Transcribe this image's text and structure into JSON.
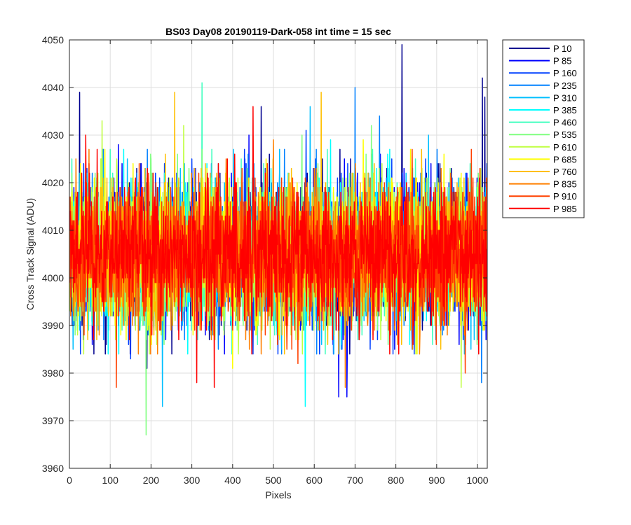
{
  "chart_data": {
    "type": "line",
    "title": "BS03 Day08 20190119-Dark-058 int time = 15 sec",
    "xlabel": "Pixels",
    "ylabel": "Cross Track Signal (ADU)",
    "xlim": [
      0,
      1024
    ],
    "ylim": [
      3960,
      4050
    ],
    "x_ticks": [
      0,
      100,
      200,
      300,
      400,
      500,
      600,
      700,
      800,
      900,
      1000
    ],
    "y_ticks": [
      3960,
      3970,
      3980,
      3990,
      4000,
      4010,
      4020,
      4030,
      4040,
      4050
    ],
    "grid": true,
    "legend_location": "outside-right-top",
    "x_range": [
      1,
      1024
    ],
    "noise_center": 4005,
    "series": [
      {
        "name": "P 10",
        "color": "#00008f",
        "spikes": [
          [
            25,
            4039
          ],
          [
            190,
            3981
          ],
          [
            470,
            4036
          ],
          [
            815,
            4049
          ],
          [
            1012,
            4042
          ],
          [
            1018,
            4038
          ],
          [
            60,
            3984
          ]
        ]
      },
      {
        "name": "P 85",
        "color": "#0000ff",
        "spikes": [
          [
            120,
            4028
          ],
          [
            660,
            3975
          ],
          [
            680,
            3975
          ],
          [
            440,
            4030
          ],
          [
            955,
            3986
          ]
        ]
      },
      {
        "name": "P 160",
        "color": "#0040ff",
        "spikes": [
          [
            300,
            4025
          ],
          [
            580,
            4031
          ],
          [
            840,
            3985
          ],
          [
            150,
            3983
          ]
        ]
      },
      {
        "name": "P 235",
        "color": "#0080ff",
        "spikes": [
          [
            700,
            4040
          ],
          [
            760,
            4034
          ],
          [
            350,
            3988
          ],
          [
            1010,
            3978
          ]
        ]
      },
      {
        "name": "P 310",
        "color": "#00bfff",
        "spikes": [
          [
            228,
            3973
          ],
          [
            590,
            4036
          ],
          [
            880,
            4030
          ],
          [
            520,
            3985
          ]
        ]
      },
      {
        "name": "P 385",
        "color": "#00ffff",
        "spikes": [
          [
            578,
            3973
          ],
          [
            640,
            4029
          ],
          [
            200,
            3986
          ]
        ]
      },
      {
        "name": "P 460",
        "color": "#40ffbf",
        "spikes": [
          [
            325,
            4041
          ],
          [
            100,
            4027
          ],
          [
            890,
            3986
          ]
        ]
      },
      {
        "name": "P 535",
        "color": "#80ff80",
        "spikes": [
          [
            188,
            3967
          ],
          [
            570,
            4030
          ],
          [
            740,
            4032
          ]
        ]
      },
      {
        "name": "P 610",
        "color": "#bfff40",
        "spikes": [
          [
            80,
            4033
          ],
          [
            280,
            4032
          ],
          [
            960,
            3977
          ]
        ]
      },
      {
        "name": "P 685",
        "color": "#ffff00",
        "spikes": [
          [
            400,
            3981
          ],
          [
            720,
            4029
          ],
          [
            30,
            4021
          ]
        ]
      },
      {
        "name": "P 760",
        "color": "#ffbf00",
        "spikes": [
          [
            258,
            4039
          ],
          [
            617,
            4039
          ],
          [
            950,
            4020
          ]
        ]
      },
      {
        "name": "P 835",
        "color": "#ff8000",
        "spikes": [
          [
            450,
            4030
          ],
          [
            676,
            3977
          ],
          [
            500,
            4029
          ]
        ]
      },
      {
        "name": "P 910",
        "color": "#ff4000",
        "spikes": [
          [
            115,
            3977
          ],
          [
            560,
            3982
          ],
          [
            970,
            3980
          ]
        ]
      },
      {
        "name": "P 985",
        "color": "#ff0000",
        "spikes": [
          [
            450,
            4036
          ],
          [
            355,
            3977
          ],
          [
            312,
            3978
          ],
          [
            40,
            4030
          ]
        ]
      }
    ]
  }
}
